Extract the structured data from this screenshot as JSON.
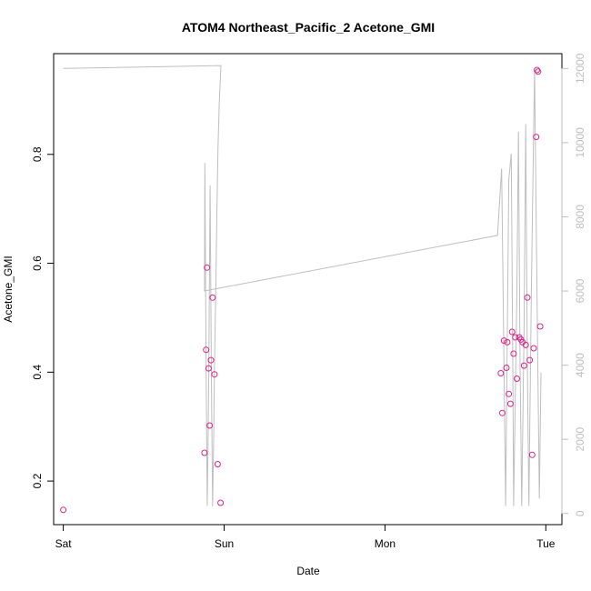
{
  "chart_data": {
    "type": "scatter",
    "title": "ATOM4 Northeast_Pacific_2 Acetone_GMI",
    "xlabel": "Date",
    "ylabel": "Acetone_GMI",
    "x_axis_type": "date",
    "x_ticks": [
      "Sat",
      "Sun",
      "Mon",
      "Tue"
    ],
    "xlim_days": [
      -0.06,
      3.1
    ],
    "ylim": [
      0.12,
      0.985
    ],
    "y_ticks": [
      0.2,
      0.4,
      0.6,
      0.8
    ],
    "y_tick_labels": [
      "0.2",
      "0.4",
      "0.6",
      "0.8"
    ],
    "y2_ticks": [
      0,
      2000,
      4000,
      6000,
      8000,
      10000,
      12000
    ],
    "y2_tick_labels": [
      "0",
      "2000",
      "4000",
      "6000",
      "8000",
      "10000",
      "12000"
    ],
    "y2lim": [
      -300,
      12400
    ],
    "grid": false,
    "colors": {
      "points": "#e0218a",
      "altitude": "#bebebe"
    },
    "series": [
      {
        "values": [
          [
            0.0,
            0.147
          ],
          [
            0.878,
            0.252
          ],
          [
            0.888,
            0.441
          ],
          [
            0.893,
            0.592
          ],
          [
            0.903,
            0.407
          ],
          [
            0.91,
            0.302
          ],
          [
            0.918,
            0.422
          ],
          [
            0.928,
            0.537
          ],
          [
            0.94,
            0.396
          ],
          [
            0.96,
            0.231
          ],
          [
            0.978,
            0.16
          ],
          [
            2.72,
            0.398
          ],
          [
            2.73,
            0.325
          ],
          [
            2.74,
            0.458
          ],
          [
            2.755,
            0.408
          ],
          [
            2.76,
            0.455
          ],
          [
            2.77,
            0.36
          ],
          [
            2.78,
            0.342
          ],
          [
            2.79,
            0.474
          ],
          [
            2.8,
            0.434
          ],
          [
            2.81,
            0.464
          ],
          [
            2.82,
            0.388
          ],
          [
            2.835,
            0.464
          ],
          [
            2.845,
            0.46
          ],
          [
            2.855,
            0.455
          ],
          [
            2.865,
            0.412
          ],
          [
            2.875,
            0.45
          ],
          [
            2.885,
            0.537
          ],
          [
            2.9,
            0.422
          ],
          [
            2.915,
            0.248
          ],
          [
            2.925,
            0.444
          ],
          [
            2.94,
            0.832
          ],
          [
            2.945,
            0.955
          ],
          [
            2.952,
            0.952
          ],
          [
            2.965,
            0.484
          ]
        ]
      },
      {
        "axis": "right",
        "values": [
          [
            0.0,
            12000
          ],
          [
            0.98,
            12080
          ],
          [
            0.97,
            11100
          ],
          [
            0.962,
            9900
          ],
          [
            0.955,
            8200
          ],
          [
            0.948,
            6000
          ],
          [
            0.94,
            4000
          ],
          [
            0.935,
            2000
          ],
          [
            0.928,
            200
          ],
          [
            0.92,
            4000
          ],
          [
            0.913,
            8850
          ],
          [
            0.905,
            4000
          ],
          [
            0.9,
            1800
          ],
          [
            0.895,
            200
          ],
          [
            0.888,
            4000
          ],
          [
            0.88,
            9450
          ],
          [
            0.878,
            6000
          ],
          [
            2.7,
            7500
          ],
          [
            2.725,
            9300
          ],
          [
            2.74,
            4000
          ],
          [
            2.75,
            200
          ],
          [
            2.77,
            9000
          ],
          [
            2.785,
            9700
          ],
          [
            2.795,
            4000
          ],
          [
            2.8,
            200
          ],
          [
            2.82,
            6000
          ],
          [
            2.83,
            10300
          ],
          [
            2.84,
            4000
          ],
          [
            2.85,
            200
          ],
          [
            2.865,
            5000
          ],
          [
            2.875,
            10500
          ],
          [
            2.885,
            4000
          ],
          [
            2.895,
            200
          ],
          [
            2.91,
            6000
          ],
          [
            2.93,
            12000
          ],
          [
            2.95,
            4000
          ],
          [
            2.96,
            400
          ],
          [
            2.97,
            3800
          ]
        ]
      }
    ]
  }
}
